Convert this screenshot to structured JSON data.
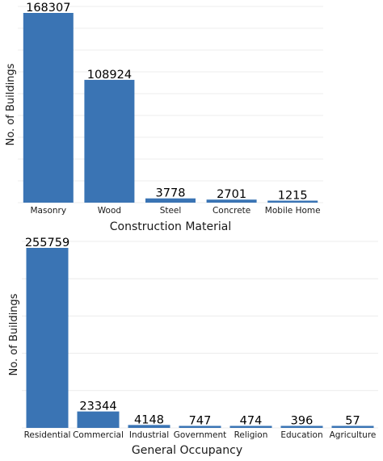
{
  "chart_data": [
    {
      "type": "bar",
      "categories": [
        "Masonry",
        "Wood",
        "Steel",
        "Concrete",
        "Mobile Home"
      ],
      "values": [
        168307,
        108924,
        3778,
        2701,
        1215
      ],
      "title": "",
      "xlabel": "Construction Material",
      "ylabel": "No. of Buildings",
      "grid": true,
      "color": "#3a74b4"
    },
    {
      "type": "bar",
      "categories": [
        "Residential",
        "Commercial",
        "Industrial",
        "Government",
        "Religion",
        "Education",
        "Agriculture"
      ],
      "values": [
        255759,
        23344,
        4148,
        747,
        474,
        396,
        57
      ],
      "title": "",
      "xlabel": "General Occupancy",
      "ylabel": "No. of Buildings",
      "grid": true,
      "color": "#3a74b4"
    }
  ]
}
